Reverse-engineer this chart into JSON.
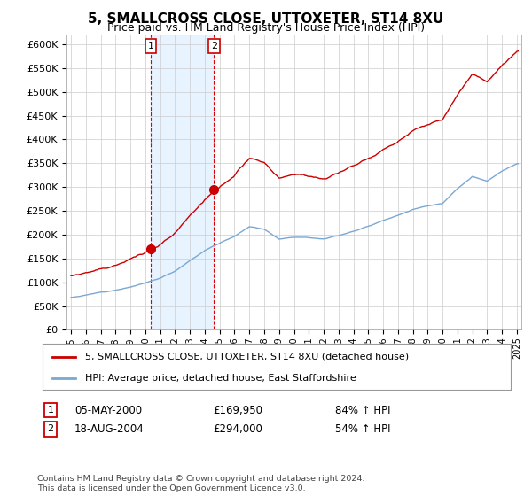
{
  "title": "5, SMALLCROSS CLOSE, UTTOXETER, ST14 8XU",
  "subtitle": "Price paid vs. HM Land Registry's House Price Index (HPI)",
  "ylabel_ticks": [
    "£0",
    "£50K",
    "£100K",
    "£150K",
    "£200K",
    "£250K",
    "£300K",
    "£350K",
    "£400K",
    "£450K",
    "£500K",
    "£550K",
    "£600K"
  ],
  "ylim": [
    0,
    620000
  ],
  "yticks": [
    0,
    50000,
    100000,
    150000,
    200000,
    250000,
    300000,
    350000,
    400000,
    450000,
    500000,
    550000,
    600000
  ],
  "legend_line1": "5, SMALLCROSS CLOSE, UTTOXETER, ST14 8XU (detached house)",
  "legend_line2": "HPI: Average price, detached house, East Staffordshire",
  "transaction1_date": "05-MAY-2000",
  "transaction1_price": "£169,950",
  "transaction1_hpi": "84% ↑ HPI",
  "transaction2_date": "18-AUG-2004",
  "transaction2_price": "£294,000",
  "transaction2_hpi": "54% ↑ HPI",
  "footer": "Contains HM Land Registry data © Crown copyright and database right 2024.\nThis data is licensed under the Open Government Licence v3.0.",
  "line_color_red": "#cc0000",
  "line_color_blue": "#7aa8d2",
  "background_color": "#ffffff",
  "grid_color": "#cccccc",
  "highlight_blue": "#ddeeff",
  "transaction1_x": 2000.37,
  "transaction2_x": 2004.62
}
